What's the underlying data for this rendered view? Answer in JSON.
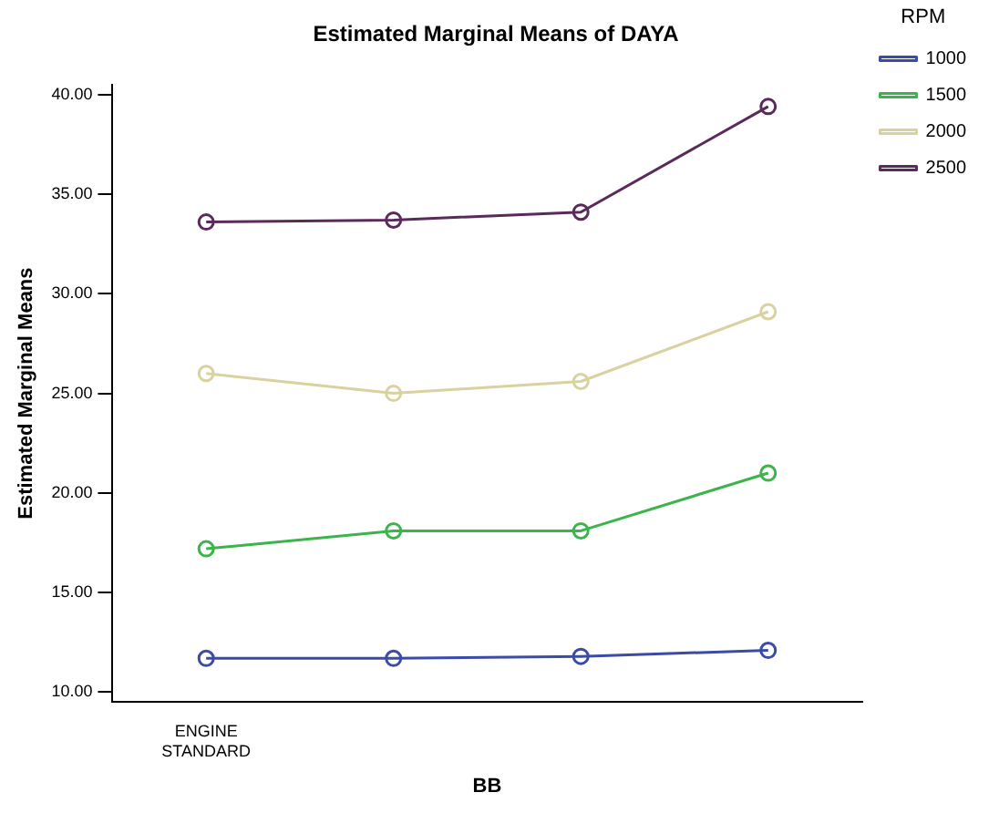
{
  "chart_data": {
    "type": "line",
    "title": "Estimated Marginal Means of DAYA",
    "xlabel": "BB",
    "ylabel": "Estimated Marginal Means",
    "legend_title": "RPM",
    "categories": [
      "ENGINE STANDARD",
      null,
      null,
      null
    ],
    "series": [
      {
        "name": "1000",
        "color": "#3b4ba8",
        "values": [
          11.7,
          11.7,
          11.8,
          12.1
        ]
      },
      {
        "name": "1500",
        "color": "#3cb44b",
        "values": [
          17.2,
          18.1,
          18.1,
          21.0
        ]
      },
      {
        "name": "2000",
        "color": "#d8d2a0",
        "values": [
          26.0,
          25.0,
          25.6,
          29.1
        ]
      },
      {
        "name": "2500",
        "color": "#5a2a5a",
        "values": [
          33.6,
          33.7,
          34.1,
          39.4
        ]
      }
    ],
    "ylim": [
      9.5,
      40.5
    ],
    "yticks": [
      {
        "value": 10,
        "label": "10.00"
      },
      {
        "value": 15,
        "label": "15.00"
      },
      {
        "value": 20,
        "label": "20.00"
      },
      {
        "value": 25,
        "label": "25.00"
      },
      {
        "value": 30,
        "label": "30.00"
      },
      {
        "value": 35,
        "label": "35.00"
      },
      {
        "value": 40,
        "label": "40.00"
      }
    ],
    "grid": false,
    "legend": "top right",
    "marker": "circle",
    "line_style": "solid"
  }
}
